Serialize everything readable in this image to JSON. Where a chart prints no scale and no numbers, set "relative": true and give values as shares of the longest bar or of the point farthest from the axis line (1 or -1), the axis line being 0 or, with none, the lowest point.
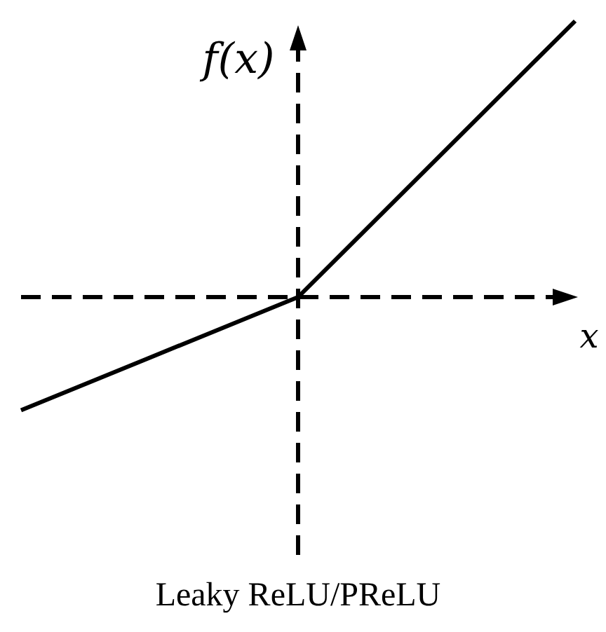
{
  "chart_data": {
    "type": "line",
    "title": "Leaky ReLU/PReLU",
    "xlabel": "x",
    "ylabel": "f(x)",
    "relative": true,
    "categories": [
      null,
      null,
      null
    ],
    "series": [
      {
        "color": "#000000",
        "values": [
          -0.41,
          0,
          1
        ]
      }
    ],
    "line_style": "solid",
    "marker": "none",
    "grid": false
  }
}
